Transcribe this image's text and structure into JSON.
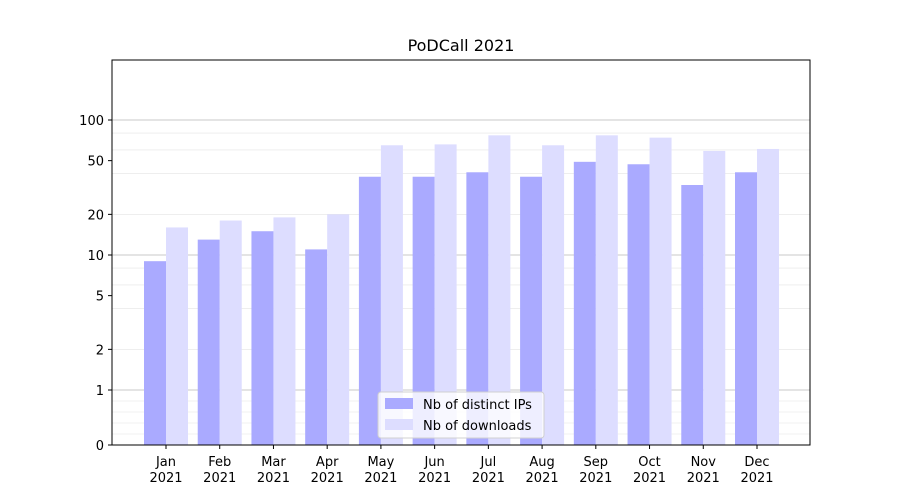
{
  "chart_data": {
    "type": "bar",
    "title": "PoDCall 2021",
    "xlabel": "",
    "ylabel": "",
    "yscale": "symlog",
    "ylim": [
      0,
      120
    ],
    "yticks": [
      "0",
      "1",
      "2",
      "5",
      "10",
      "20",
      "50",
      "100"
    ],
    "grid": true,
    "legend_position": "bottom-center",
    "categories": [
      {
        "month": "Jan",
        "year": "2021"
      },
      {
        "month": "Feb",
        "year": "2021"
      },
      {
        "month": "Mar",
        "year": "2021"
      },
      {
        "month": "Apr",
        "year": "2021"
      },
      {
        "month": "May",
        "year": "2021"
      },
      {
        "month": "Jun",
        "year": "2021"
      },
      {
        "month": "Jul",
        "year": "2021"
      },
      {
        "month": "Aug",
        "year": "2021"
      },
      {
        "month": "Sep",
        "year": "2021"
      },
      {
        "month": "Oct",
        "year": "2021"
      },
      {
        "month": "Nov",
        "year": "2021"
      },
      {
        "month": "Dec",
        "year": "2021"
      }
    ],
    "series": [
      {
        "name": "Nb of distinct IPs",
        "color": "#aaaaff",
        "values": [
          9,
          13,
          15,
          11,
          38,
          38,
          41,
          38,
          49,
          47,
          33,
          41
        ]
      },
      {
        "name": "Nb of downloads",
        "color": "#ddddff",
        "values": [
          16,
          18,
          19,
          20,
          65,
          66,
          77,
          65,
          77,
          74,
          59,
          61
        ]
      }
    ]
  }
}
